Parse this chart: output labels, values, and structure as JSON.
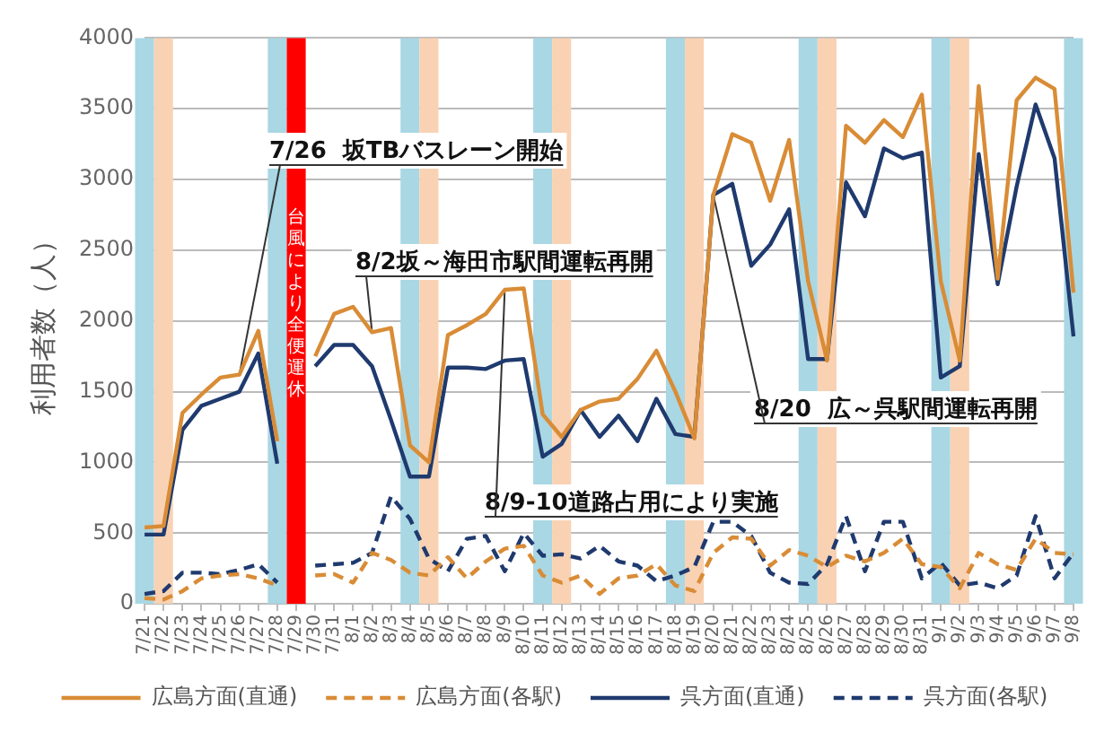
{
  "chart_data": {
    "type": "line",
    "ylabel": "利用者数（人）",
    "categories": [
      "7/21",
      "7/22",
      "7/23",
      "7/24",
      "7/25",
      "7/26",
      "7/27",
      "7/28",
      "7/29",
      "7/30",
      "7/31",
      "8/1",
      "8/2",
      "8/3",
      "8/4",
      "8/5",
      "8/6",
      "8/7",
      "8/8",
      "8/9",
      "8/10",
      "8/11",
      "8/12",
      "8/13",
      "8/14",
      "8/15",
      "8/16",
      "8/17",
      "8/18",
      "8/19",
      "8/20",
      "8/21",
      "8/22",
      "8/23",
      "8/24",
      "8/25",
      "8/26",
      "8/27",
      "8/28",
      "8/29",
      "8/30",
      "8/31",
      "9/1",
      "9/2",
      "9/3",
      "9/4",
      "9/5",
      "9/6",
      "9/7",
      "9/8"
    ],
    "series": [
      {
        "name": "広島方面(直通)",
        "color": "#d98c36",
        "line_style": "solid",
        "values": [
          540,
          550,
          1350,
          1480,
          1600,
          1620,
          1930,
          1150,
          null,
          1750,
          2050,
          2100,
          1920,
          1950,
          1120,
          1000,
          1900,
          1970,
          2050,
          2220,
          2230,
          1340,
          1180,
          1370,
          1430,
          1450,
          1590,
          1790,
          1500,
          1170,
          2890,
          3320,
          3260,
          2850,
          3280,
          2280,
          1720,
          3380,
          3260,
          3420,
          3300,
          3600,
          2280,
          1720,
          3660,
          2300,
          3560,
          3720,
          3640,
          2200
        ]
      },
      {
        "name": "広島方面(各駅)",
        "color": "#d98c36",
        "line_style": "dashed",
        "values": [
          40,
          30,
          90,
          180,
          200,
          210,
          180,
          130,
          null,
          200,
          210,
          150,
          360,
          310,
          220,
          200,
          330,
          180,
          300,
          390,
          410,
          200,
          150,
          200,
          70,
          180,
          200,
          280,
          130,
          90,
          360,
          470,
          460,
          270,
          380,
          340,
          260,
          340,
          300,
          360,
          460,
          280,
          260,
          110,
          360,
          280,
          240,
          460,
          360,
          350
        ]
      },
      {
        "name": "呉方面(直通)",
        "color": "#1f3a6e",
        "line_style": "solid",
        "values": [
          490,
          490,
          1230,
          1400,
          1450,
          1500,
          1770,
          990,
          null,
          1680,
          1830,
          1830,
          1680,
          1300,
          900,
          900,
          1670,
          1670,
          1660,
          1720,
          1730,
          1040,
          1130,
          1370,
          1180,
          1330,
          1150,
          1450,
          1200,
          1180,
          2890,
          2970,
          2390,
          2540,
          2790,
          1730,
          1730,
          2980,
          2740,
          3220,
          3150,
          3190,
          1600,
          1680,
          3180,
          2260,
          2950,
          3530,
          3150,
          1890
        ]
      },
      {
        "name": "呉方面(各駅)",
        "color": "#1f3a6e",
        "line_style": "dashed",
        "values": [
          70,
          90,
          220,
          220,
          210,
          240,
          280,
          150,
          null,
          270,
          280,
          290,
          360,
          760,
          600,
          320,
          230,
          460,
          480,
          230,
          500,
          340,
          350,
          320,
          410,
          300,
          270,
          160,
          200,
          260,
          580,
          580,
          480,
          220,
          150,
          140,
          280,
          620,
          230,
          580,
          580,
          180,
          290,
          130,
          150,
          110,
          200,
          620,
          180,
          360
        ]
      }
    ],
    "ylim": [
      0,
      4000
    ],
    "yticks": [
      0,
      500,
      1000,
      1500,
      2000,
      2500,
      3000,
      3500,
      4000
    ],
    "grid": "y",
    "legend": "bottom",
    "marker": "none",
    "bands": [
      {
        "axis": "x",
        "from": "7/21",
        "to": "7/21",
        "color": "#a9d7e4"
      },
      {
        "axis": "x",
        "from": "7/22",
        "to": "7/22",
        "color": "#f9d2b4"
      },
      {
        "axis": "x",
        "from": "7/28",
        "to": "7/28",
        "color": "#a9d7e4"
      },
      {
        "axis": "x",
        "from": "7/29",
        "to": "7/29",
        "color": "#ff0000",
        "label": "台風により全便運休"
      },
      {
        "axis": "x",
        "from": "8/4",
        "to": "8/4",
        "color": "#a9d7e4"
      },
      {
        "axis": "x",
        "from": "8/5",
        "to": "8/5",
        "color": "#f9d2b4"
      },
      {
        "axis": "x",
        "from": "8/11",
        "to": "8/11",
        "color": "#a9d7e4"
      },
      {
        "axis": "x",
        "from": "8/12",
        "to": "8/12",
        "color": "#f9d2b4"
      },
      {
        "axis": "x",
        "from": "8/18",
        "to": "8/18",
        "color": "#a9d7e4"
      },
      {
        "axis": "x",
        "from": "8/19",
        "to": "8/19",
        "color": "#f9d2b4"
      },
      {
        "axis": "x",
        "from": "8/25",
        "to": "8/25",
        "color": "#a9d7e4"
      },
      {
        "axis": "x",
        "from": "8/26",
        "to": "8/26",
        "color": "#f9d2b4"
      },
      {
        "axis": "x",
        "from": "9/1",
        "to": "9/1",
        "color": "#a9d7e4"
      },
      {
        "axis": "x",
        "from": "9/2",
        "to": "9/2",
        "color": "#f9d2b4"
      },
      {
        "axis": "x",
        "from": "9/8",
        "to": "9/8",
        "color": "#a9d7e4"
      }
    ],
    "annotations": [
      {
        "text": "7/26  坂TBバスレーン開始",
        "x": "7/26",
        "y": 1620
      },
      {
        "text": "8/2坂～海田市駅間運転再開",
        "x": "8/2",
        "y": 1920
      },
      {
        "text": "8/9-10道路占用により実施",
        "x": "8/9",
        "y": 2220
      },
      {
        "text": "8/20  広～呉駅間運転再開",
        "x": "8/20",
        "y": 2890
      }
    ]
  }
}
